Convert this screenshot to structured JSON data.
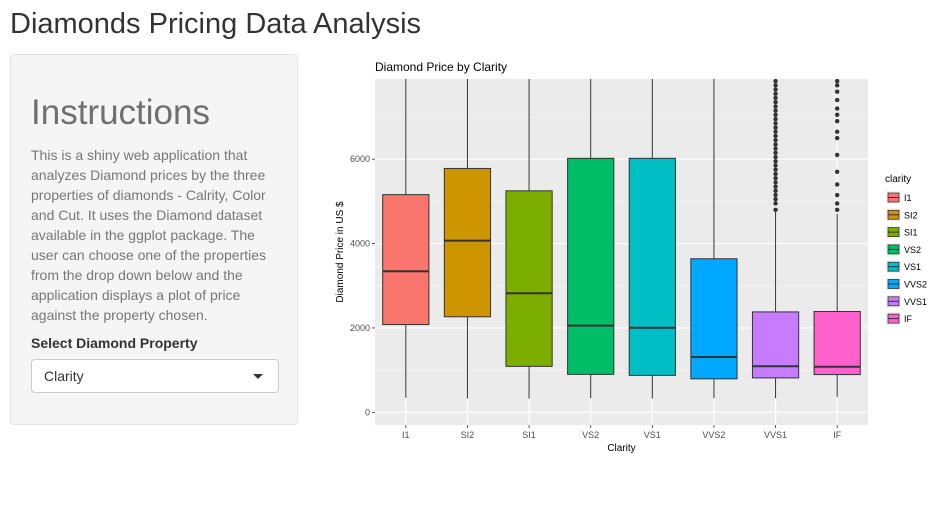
{
  "page": {
    "title": "Diamonds Pricing Data Analysis"
  },
  "sidebar": {
    "heading": "Instructions",
    "description": "This is a shiny web application that analyzes Diamond prices by the three properties of diamonds - Calrity, Color and Cut. It uses the Diamond dataset available in the ggplot package. The user can choose one of the properties from the drop down below and the application displays a plot of price against the property chosen.",
    "select_label": "Select Diamond Property",
    "select_value": "Clarity"
  },
  "chart_data": {
    "type": "boxplot",
    "title": "Diamond Price by Clarity",
    "xlabel": "Clarity",
    "ylabel": "Diamond Price in US $",
    "ylim": [
      -300,
      7900
    ],
    "yticks": [
      0,
      2000,
      4000,
      6000
    ],
    "grid": true,
    "legend": {
      "title": "clarity",
      "position": "right"
    },
    "categories": [
      "I1",
      "SI2",
      "SI1",
      "VS2",
      "VS1",
      "VVS2",
      "VVS1",
      "IF"
    ],
    "colors": [
      "#F8766D",
      "#CD9600",
      "#7CAE00",
      "#00BE67",
      "#00BFC4",
      "#00A9FF",
      "#C77CFF",
      "#FF61CC"
    ],
    "boxes": [
      {
        "whisker_low": 345,
        "q1": 2080,
        "median": 3345,
        "q3": 5160,
        "whisker_high": 7900
      },
      {
        "whisker_low": 326,
        "q1": 2265,
        "median": 4070,
        "q3": 5780,
        "whisker_high": 7900
      },
      {
        "whisker_low": 326,
        "q1": 1090,
        "median": 2822,
        "q3": 5250,
        "whisker_high": 7900
      },
      {
        "whisker_low": 334,
        "q1": 900,
        "median": 2054,
        "q3": 6020,
        "whisker_high": 7900
      },
      {
        "whisker_low": 327,
        "q1": 876,
        "median": 2005,
        "q3": 6020,
        "whisker_high": 7900
      },
      {
        "whisker_low": 336,
        "q1": 794,
        "median": 1311,
        "q3": 3640,
        "whisker_high": 7900
      },
      {
        "whisker_low": 336,
        "q1": 816,
        "median": 1093,
        "q3": 2380,
        "whisker_high": 4750
      },
      {
        "whisker_low": 369,
        "q1": 895,
        "median": 1080,
        "q3": 2390,
        "whisker_high": 4700
      }
    ],
    "outliers": [
      [],
      [],
      [],
      [],
      [],
      [],
      [
        4800,
        4950,
        5050,
        5150,
        5250,
        5350,
        5450,
        5550,
        5650,
        5750,
        5850,
        5950,
        6050,
        6150,
        6250,
        6350,
        6450,
        6550,
        6650,
        6750,
        6850,
        6950,
        7050,
        7150,
        7250,
        7350,
        7450,
        7550,
        7650,
        7750,
        7850
      ],
      [
        4800,
        4950,
        5150,
        5400,
        5700,
        6100,
        6500,
        6650,
        6900,
        7050,
        7200,
        7400,
        7600,
        7750,
        7850
      ]
    ]
  }
}
